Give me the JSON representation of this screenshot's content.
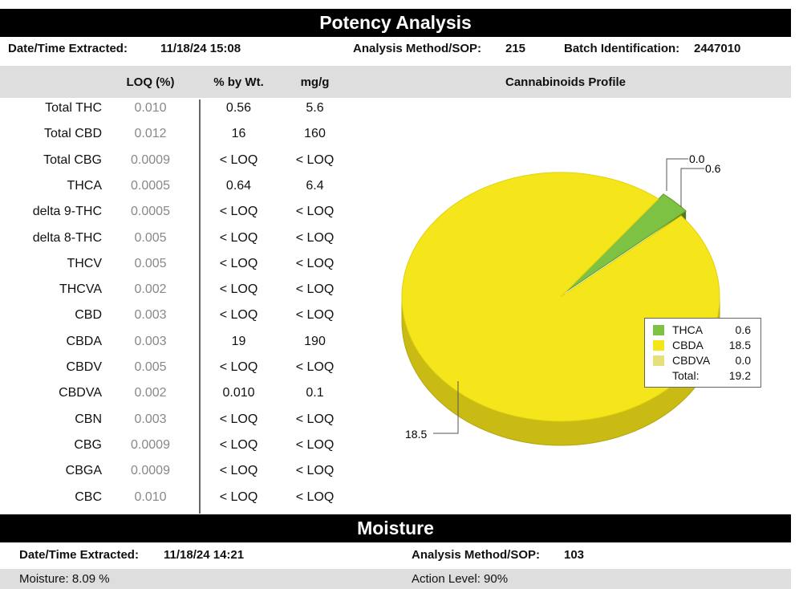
{
  "potency": {
    "title": "Potency Analysis",
    "date_label": "Date/Time Extracted:",
    "date_value": "11/18/24  15:08",
    "method_label": "Analysis Method/SOP:",
    "method_value": "215",
    "batch_label": "Batch Identification:",
    "batch_value": "2447010"
  },
  "table": {
    "headers": [
      "LOQ (%)",
      "% by Wt.",
      "mg/g"
    ],
    "chart_title": "Cannabinoids Profile",
    "rows": [
      [
        "Total THC",
        "0.010",
        "0.56",
        "5.6"
      ],
      [
        "Total CBD",
        "0.012",
        "16",
        "160"
      ],
      [
        "Total CBG",
        "0.0009",
        "< LOQ",
        "< LOQ"
      ],
      [
        "THCA",
        "0.0005",
        "0.64",
        "6.4"
      ],
      [
        "delta 9-THC",
        "0.0005",
        "< LOQ",
        "< LOQ"
      ],
      [
        "delta 8-THC",
        "0.005",
        "< LOQ",
        "< LOQ"
      ],
      [
        "THCV",
        "0.005",
        "< LOQ",
        "< LOQ"
      ],
      [
        "THCVA",
        "0.002",
        "< LOQ",
        "< LOQ"
      ],
      [
        "CBD",
        "0.003",
        "< LOQ",
        "< LOQ"
      ],
      [
        "CBDA",
        "0.003",
        "19",
        "190"
      ],
      [
        "CBDV",
        "0.005",
        "< LOQ",
        "< LOQ"
      ],
      [
        "CBDVA",
        "0.002",
        "0.010",
        "0.1"
      ],
      [
        "CBN",
        "0.003",
        "< LOQ",
        "< LOQ"
      ],
      [
        "CBG",
        "0.0009",
        "< LOQ",
        "< LOQ"
      ],
      [
        "CBGA",
        "0.0009",
        "< LOQ",
        "< LOQ"
      ],
      [
        "CBC",
        "0.010",
        "< LOQ",
        "< LOQ"
      ]
    ]
  },
  "chart_data": {
    "type": "pie",
    "title": "Cannabinoids Profile",
    "categories": [
      "THCA",
      "CBDA",
      "CBDVA"
    ],
    "values": [
      0.6,
      18.5,
      0.0
    ],
    "colors": [
      "#7dc242",
      "#f5e51b",
      "#e6e07a"
    ],
    "data_labels": [
      "0.6",
      "18.5",
      "0.0"
    ],
    "total_label": "Total:",
    "total": "19.2",
    "legend": "right"
  },
  "moisture": {
    "title": "Moisture",
    "date_label": "Date/Time Extracted:",
    "date_value": "11/18/24  14:21",
    "method_label": "Analysis Method/SOP:",
    "method_value": "103",
    "moisture_text": "Moisture:  8.09 %",
    "action_text": "Action Level: 90%"
  }
}
